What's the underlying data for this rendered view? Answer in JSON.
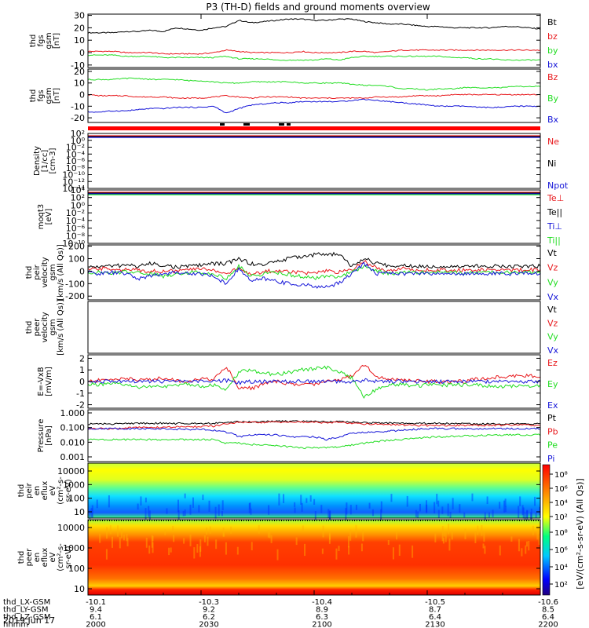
{
  "title": "P3 (TH-D) fields and ground moments overview",
  "colors": {
    "black": "#000000",
    "red": "#e8181c",
    "green": "#22dd22",
    "blue": "#1515d8"
  },
  "chart_data": [
    {
      "type": "line",
      "ylabel": [
        "thd",
        "fgs",
        "gsm",
        "[nT]"
      ],
      "yticks": [
        "30",
        "20",
        "10",
        "0",
        "-10"
      ],
      "ylim": [
        -12,
        31
      ],
      "legend": [
        {
          "name": "Bt",
          "color": "black"
        },
        {
          "name": "bz",
          "color": "red"
        },
        {
          "name": "by",
          "color": "green"
        },
        {
          "name": "bx",
          "color": "blue"
        }
      ],
      "series": [
        {
          "name": "Bt",
          "color": "black",
          "y": [
            16,
            16,
            16,
            17,
            17,
            18,
            17,
            20,
            19,
            18,
            20,
            21,
            26,
            24,
            25,
            26,
            27,
            27,
            26,
            26,
            27,
            27,
            25,
            24,
            23,
            23,
            22,
            21,
            21,
            20,
            20,
            20,
            20,
            21,
            21,
            20,
            19
          ]
        },
        {
          "name": "bz",
          "color": "red",
          "y": [
            1,
            1,
            1,
            0,
            0,
            0,
            -1,
            -1,
            -1,
            -1,
            0,
            2,
            1,
            0,
            0,
            0,
            0,
            1,
            0,
            0,
            0,
            1,
            1,
            0,
            1,
            2,
            2,
            2,
            2,
            2,
            2,
            2,
            2,
            2,
            2,
            2,
            2
          ]
        },
        {
          "name": "by",
          "color": "green",
          "y": [
            -2,
            -2,
            -2,
            -3,
            -3,
            -3,
            -4,
            -4,
            -4,
            -4,
            -4,
            -3,
            -5,
            -5,
            -5,
            -6,
            -6,
            -6,
            -6,
            -5,
            -6,
            -4,
            -3,
            -3,
            -3,
            -3,
            -3,
            -3,
            -3,
            -4,
            -4,
            -5,
            -5,
            -6,
            -6,
            -6,
            -6
          ]
        }
      ]
    },
    {
      "type": "line",
      "ylabel": [
        "thd",
        "fgs",
        "gsm",
        "[nT]"
      ],
      "yticks": [
        "20",
        "10",
        "0",
        "-10",
        "-20"
      ],
      "ylim": [
        -24,
        22
      ],
      "legend": [
        {
          "name": "Bz",
          "color": "red"
        },
        {
          "name": "By",
          "color": "green"
        },
        {
          "name": "Bx",
          "color": "blue"
        }
      ],
      "series": [
        {
          "name": "Bz",
          "color": "red",
          "y": [
            0,
            -1,
            -1,
            -1,
            -2,
            -2,
            -2,
            -3,
            -3,
            -3,
            -2,
            -1,
            -2,
            -3,
            -2,
            -2,
            -2,
            -3,
            -3,
            -3,
            -3,
            -3,
            -3,
            -2,
            -2,
            -2,
            -1,
            -1,
            -1,
            0,
            0,
            0,
            0,
            0,
            0,
            0,
            0
          ]
        },
        {
          "name": "By",
          "color": "green",
          "y": [
            13,
            13,
            13,
            14,
            14,
            13,
            13,
            13,
            12,
            12,
            11,
            10,
            10,
            11,
            11,
            11,
            11,
            10,
            10,
            10,
            10,
            9,
            8,
            8,
            7,
            5,
            5,
            4,
            5,
            5,
            6,
            6,
            6,
            6,
            7,
            7,
            7
          ]
        },
        {
          "name": "Bx",
          "color": "blue",
          "y": [
            -15,
            -15,
            -14,
            -14,
            -13,
            -12,
            -12,
            -11,
            -11,
            -11,
            -10,
            -16,
            -12,
            -9,
            -8,
            -7,
            -7,
            -6,
            -6,
            -6,
            -6,
            -5,
            -4,
            -5,
            -6,
            -7,
            -8,
            -9,
            -10,
            -10,
            -10,
            -11,
            -11,
            -11,
            -10,
            -10,
            -10
          ]
        }
      ]
    },
    {
      "type": "line",
      "ylabel": [
        "Density",
        "[1/cc]",
        "[cm-3]"
      ],
      "yticks": [
        "10²",
        "10⁰",
        "10⁻²",
        "10⁻⁴",
        "10⁻⁶",
        "10⁻⁸",
        "10⁻¹⁰",
        "10⁻¹²",
        "10⁻¹⁴"
      ],
      "ylim": [
        -14,
        2
      ],
      "log": true,
      "legend": [
        {
          "name": "Ne",
          "color": "red"
        },
        {
          "name": "Ni",
          "color": "black"
        },
        {
          "name": "Npot",
          "color": "blue"
        }
      ]
    },
    {
      "type": "line",
      "ylabel": [
        "moqt3",
        "[eV]"
      ],
      "yticks": [
        "10⁴",
        "10²",
        "10⁰",
        "10⁻²",
        "10⁻⁴",
        "10⁻⁶",
        "10⁻⁸",
        "10⁻¹⁰"
      ],
      "ylim": [
        -10,
        4
      ],
      "log": true,
      "legend": [
        {
          "name": "Te⊥",
          "color": "red"
        },
        {
          "name": "Te||",
          "color": "black"
        },
        {
          "name": "Ti⊥",
          "color": "blue"
        },
        {
          "name": "Ti||",
          "color": "green"
        }
      ]
    },
    {
      "type": "line",
      "ylabel": [
        "thd",
        "peir",
        "velocity",
        "gsm",
        "[km/s (All Qs)]"
      ],
      "yticks": [
        "200",
        "100",
        "0",
        "-100",
        "-200"
      ],
      "ylim": [
        -230,
        210
      ],
      "legend": [
        {
          "name": "Vt",
          "color": "black"
        },
        {
          "name": "Vz",
          "color": "red"
        },
        {
          "name": "Vy",
          "color": "green"
        },
        {
          "name": "Vx",
          "color": "blue"
        }
      ],
      "series": [
        {
          "name": "Vt",
          "color": "black",
          "y": [
            30,
            40,
            40,
            50,
            40,
            60,
            50,
            30,
            40,
            50,
            60,
            60,
            100,
            60,
            50,
            80,
            100,
            120,
            130,
            140,
            130,
            40,
            100,
            60,
            40,
            50,
            40,
            40,
            40,
            40,
            40,
            40,
            40,
            40,
            40,
            40,
            40
          ]
        },
        {
          "name": "Vz",
          "color": "red",
          "y": [
            10,
            20,
            20,
            10,
            10,
            0,
            0,
            0,
            10,
            20,
            10,
            -20,
            20,
            -30,
            0,
            0,
            0,
            -10,
            -20,
            0,
            -10,
            10,
            80,
            20,
            10,
            20,
            10,
            10,
            10,
            10,
            10,
            10,
            10,
            10,
            10,
            10,
            10
          ]
        },
        {
          "name": "Vy",
          "color": "green",
          "y": [
            -10,
            -10,
            -20,
            0,
            -10,
            -20,
            -40,
            -20,
            -10,
            -10,
            -20,
            -60,
            40,
            -40,
            -20,
            -10,
            -30,
            -40,
            -60,
            -40,
            -40,
            -10,
            40,
            0,
            -20,
            -10,
            -10,
            -10,
            -10,
            -10,
            -10,
            -10,
            -10,
            -10,
            -10,
            -10,
            -10
          ]
        },
        {
          "name": "Vx",
          "color": "blue",
          "y": [
            -10,
            -20,
            -10,
            -20,
            -60,
            -40,
            -20,
            -10,
            -20,
            -20,
            -40,
            -100,
            20,
            -80,
            -60,
            -80,
            -100,
            -110,
            -120,
            -130,
            -90,
            -20,
            60,
            -20,
            -10,
            -20,
            -20,
            -20,
            -20,
            -20,
            -20,
            -20,
            -20,
            -20,
            -20,
            -20,
            -20
          ]
        }
      ]
    },
    {
      "type": "line",
      "ylabel": [
        "thd",
        "peer",
        "velocity",
        "gsm",
        "[km/s (All Qs)]"
      ],
      "yticks": [],
      "legend": [
        {
          "name": "Vt",
          "color": "black"
        },
        {
          "name": "Vz",
          "color": "red"
        },
        {
          "name": "Vy",
          "color": "green"
        },
        {
          "name": "Vx",
          "color": "blue"
        }
      ]
    },
    {
      "type": "line",
      "ylabel": [
        "E=-VxB",
        "[mV/m]"
      ],
      "yticks": [
        "2",
        "1",
        "0",
        "-1",
        "-2"
      ],
      "ylim": [
        -2.3,
        2.3
      ],
      "legend": [
        {
          "name": "Ez",
          "color": "red"
        },
        {
          "name": "Ey",
          "color": "green"
        },
        {
          "name": "Ex",
          "color": "blue"
        }
      ],
      "series": [
        {
          "name": "Ez",
          "color": "red",
          "y": [
            0,
            0.1,
            0.2,
            0.3,
            0.1,
            0.2,
            0.3,
            0.1,
            0,
            0.2,
            0.2,
            1.3,
            -0.5,
            -0.6,
            -0.2,
            0,
            -0.2,
            -0.3,
            -0.2,
            0,
            0.2,
            0.5,
            1.5,
            0.4,
            0.2,
            0.1,
            0.1,
            0,
            0,
            0,
            0,
            0.2,
            0.3,
            0.4,
            0.5,
            0.5,
            0.5
          ]
        },
        {
          "name": "Ey",
          "color": "green",
          "y": [
            -0.2,
            -0.3,
            -0.2,
            -0.3,
            -0.5,
            -0.4,
            -0.5,
            -0.3,
            -0.2,
            -0.4,
            -0.3,
            -0.8,
            0.8,
            1.0,
            0.7,
            0.6,
            0.8,
            1.0,
            1.1,
            1.2,
            0.9,
            0.3,
            -1.4,
            -0.6,
            -0.3,
            -0.2,
            -0.4,
            -0.3,
            -0.3,
            -0.3,
            -0.3,
            -0.3,
            -0.4,
            -0.4,
            -0.4,
            -0.4,
            -0.3
          ]
        },
        {
          "name": "Ex",
          "color": "blue",
          "y": [
            0,
            0,
            0,
            0,
            0,
            0,
            0,
            0,
            0,
            0,
            0,
            0.1,
            -0.1,
            0,
            0,
            0,
            0,
            0,
            0,
            0,
            0,
            0,
            0.1,
            0,
            0,
            0,
            0,
            0,
            0,
            0,
            0,
            0,
            0,
            0,
            0,
            0,
            0
          ]
        }
      ]
    },
    {
      "type": "line",
      "ylabel": [
        "Pressure",
        "[nPa]"
      ],
      "yticks": [
        "1.000",
        "0.100",
        "0.010",
        "0.001"
      ],
      "ylim": [
        -3.1,
        0.2
      ],
      "log": true,
      "legend": [
        {
          "name": "Pt",
          "color": "black"
        },
        {
          "name": "Pb",
          "color": "red"
        },
        {
          "name": "Pe",
          "color": "green"
        },
        {
          "name": "Pi",
          "color": "blue"
        }
      ],
      "series": [
        {
          "name": "Pt",
          "color": "black",
          "y": [
            0.2,
            0.2,
            0.2,
            0.21,
            0.22,
            0.22,
            0.22,
            0.21,
            0.22,
            0.22,
            0.22,
            0.26,
            0.27,
            0.27,
            0.28,
            0.29,
            0.29,
            0.29,
            0.28,
            0.28,
            0.28,
            0.26,
            0.24,
            0.23,
            0.23,
            0.22,
            0.22,
            0.22,
            0.22,
            0.21,
            0.21,
            0.2,
            0.2,
            0.2,
            0.2,
            0.2,
            0.2
          ]
        },
        {
          "name": "Pb",
          "color": "red",
          "y": [
            0.1,
            0.1,
            0.1,
            0.11,
            0.12,
            0.12,
            0.12,
            0.13,
            0.13,
            0.14,
            0.14,
            0.2,
            0.25,
            0.24,
            0.25,
            0.26,
            0.26,
            0.26,
            0.25,
            0.25,
            0.25,
            0.22,
            0.2,
            0.2,
            0.18,
            0.17,
            0.16,
            0.16,
            0.16,
            0.16,
            0.16,
            0.16,
            0.16,
            0.17,
            0.17,
            0.17,
            0.16
          ]
        },
        {
          "name": "Pe",
          "color": "green",
          "y": [
            0.02,
            0.02,
            0.02,
            0.02,
            0.02,
            0.02,
            0.02,
            0.02,
            0.02,
            0.02,
            0.02,
            0.012,
            0.012,
            0.01,
            0.009,
            0.008,
            0.007,
            0.006,
            0.006,
            0.006,
            0.007,
            0.009,
            0.012,
            0.015,
            0.018,
            0.02,
            0.024,
            0.028,
            0.03,
            0.032,
            0.035,
            0.036,
            0.038,
            0.04,
            0.04,
            0.04,
            0.04
          ]
        },
        {
          "name": "Pi",
          "color": "blue",
          "y": [
            0.1,
            0.1,
            0.1,
            0.1,
            0.1,
            0.1,
            0.1,
            0.09,
            0.09,
            0.09,
            0.08,
            0.06,
            0.03,
            0.04,
            0.04,
            0.04,
            0.03,
            0.03,
            0.03,
            0.02,
            0.03,
            0.05,
            0.06,
            0.06,
            0.07,
            0.08,
            0.09,
            0.1,
            0.1,
            0.1,
            0.1,
            0.1,
            0.1,
            0.1,
            0.1,
            0.1,
            0.1
          ]
        }
      ]
    },
    {
      "type": "heatmap",
      "ylabel": [
        "thd",
        "peir",
        "en",
        "eflux",
        "eV",
        "(cm²-s-",
        "sr-eV)"
      ],
      "yticks": [
        "10000",
        "1000",
        "100",
        "10"
      ],
      "ylim": [
        0.7,
        4.3
      ],
      "log": true
    },
    {
      "type": "heatmap",
      "ylabel": [
        "thd",
        "peer",
        "en",
        "eflux",
        "eV",
        "(cm²-s-",
        "sr-eV)"
      ],
      "yticks": [
        "10000",
        "1000",
        "100",
        "10"
      ],
      "ylim": [
        0.75,
        4.3
      ],
      "log": true
    }
  ],
  "colorbar": {
    "label": "[eV/(cm²-s-sr-eV) (All Qs)]",
    "upper_ticks": [
      "10⁸",
      "10⁶",
      "10⁴",
      "10²"
    ],
    "lower_ticks": [
      "10⁸",
      "10⁶",
      "10⁴",
      "10²"
    ]
  },
  "x_axis": {
    "rows": [
      {
        "label": "thd_LX-GSM",
        "values": [
          "-10.1",
          "-10.3",
          "-10.4",
          "-10.5",
          "-10.6"
        ]
      },
      {
        "label": "thd_LY-GSM",
        "values": [
          "9.4",
          "9.2",
          "8.9",
          "8.7",
          "8.5"
        ]
      },
      {
        "label": "thd_LZ-GSM",
        "values": [
          "6.1",
          "6.2",
          "6.3",
          "6.4",
          "6.4"
        ]
      },
      {
        "label": "hhmm",
        "values": [
          "2000",
          "2030",
          "2100",
          "2130",
          "2200"
        ]
      }
    ],
    "date": "2019 Jun 17",
    "xlim": [
      2000,
      2200
    ]
  }
}
